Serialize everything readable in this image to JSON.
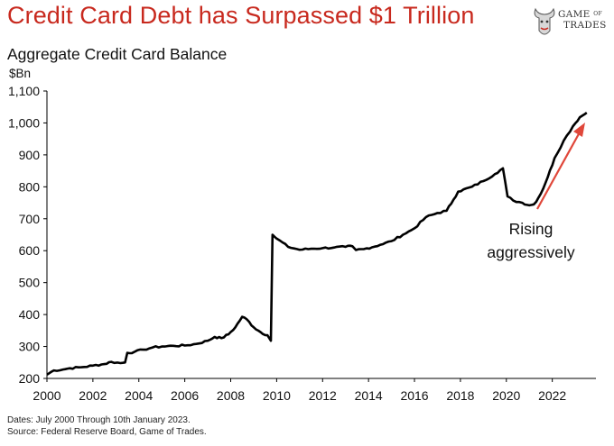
{
  "header": {
    "title": "Credit Card Debt has Surpassed $1 Trillion",
    "subtitle": "Aggregate Credit Card Balance"
  },
  "logo": {
    "line1": "GAME",
    "line1_small": "OF",
    "line2": "TRADES",
    "icon": "bull-icon"
  },
  "footer": {
    "dates": "Dates: July 2000 Through 10th January 2023.",
    "source": "Source: Federal Reserve Board, Game of Trades."
  },
  "chart_data": {
    "type": "line",
    "title": "Credit Card Debt has Surpassed $1 Trillion",
    "subtitle": "Aggregate Credit Card Balance",
    "ylabel": "$Bn",
    "xlabel": "",
    "xlim": [
      2000,
      2023.9
    ],
    "ylim": [
      200,
      1100
    ],
    "xticks": [
      "2000",
      "2002",
      "2004",
      "2006",
      "2008",
      "2010",
      "2012",
      "2014",
      "2016",
      "2018",
      "2020",
      "2022"
    ],
    "yticks": [
      "200",
      "300",
      "400",
      "500",
      "600",
      "700",
      "800",
      "900",
      "1,000",
      "1,100"
    ],
    "grid": false,
    "series": [
      {
        "color": "#000000",
        "points": [
          [
            2000.0,
            212
          ],
          [
            2000.3,
            225
          ],
          [
            2000.7,
            228
          ],
          [
            2001.0,
            232
          ],
          [
            2001.5,
            235
          ],
          [
            2002.0,
            240
          ],
          [
            2002.5,
            245
          ],
          [
            2002.8,
            252
          ],
          [
            2003.2,
            248
          ],
          [
            2003.4,
            250
          ],
          [
            2003.5,
            280
          ],
          [
            2003.8,
            283
          ],
          [
            2004.2,
            290
          ],
          [
            2004.6,
            297
          ],
          [
            2005.0,
            300
          ],
          [
            2005.5,
            302
          ],
          [
            2006.0,
            303
          ],
          [
            2006.5,
            308
          ],
          [
            2007.0,
            318
          ],
          [
            2007.3,
            330
          ],
          [
            2007.6,
            326
          ],
          [
            2007.9,
            338
          ],
          [
            2008.2,
            360
          ],
          [
            2008.5,
            393
          ],
          [
            2008.7,
            385
          ],
          [
            2009.0,
            360
          ],
          [
            2009.3,
            345
          ],
          [
            2009.6,
            335
          ],
          [
            2009.75,
            318
          ],
          [
            2009.82,
            650
          ],
          [
            2010.0,
            638
          ],
          [
            2010.5,
            612
          ],
          [
            2011.0,
            603
          ],
          [
            2011.5,
            606
          ],
          [
            2012.0,
            608
          ],
          [
            2012.5,
            610
          ],
          [
            2013.0,
            612
          ],
          [
            2013.3,
            614
          ],
          [
            2013.45,
            602
          ],
          [
            2013.8,
            605
          ],
          [
            2014.5,
            618
          ],
          [
            2015.0,
            630
          ],
          [
            2015.5,
            650
          ],
          [
            2016.0,
            670
          ],
          [
            2016.5,
            705
          ],
          [
            2017.0,
            718
          ],
          [
            2017.4,
            725
          ],
          [
            2017.7,
            760
          ],
          [
            2017.9,
            785
          ],
          [
            2018.5,
            800
          ],
          [
            2019.0,
            818
          ],
          [
            2019.5,
            840
          ],
          [
            2019.85,
            858
          ],
          [
            2020.05,
            770
          ],
          [
            2020.3,
            757
          ],
          [
            2020.7,
            750
          ],
          [
            2021.0,
            742
          ],
          [
            2021.2,
            745
          ],
          [
            2021.5,
            778
          ],
          [
            2021.8,
            830
          ],
          [
            2022.1,
            890
          ],
          [
            2022.5,
            945
          ],
          [
            2022.9,
            990
          ],
          [
            2023.2,
            1018
          ],
          [
            2023.5,
            1032
          ]
        ]
      }
    ],
    "annotations": [
      {
        "text_line1": "Rising",
        "text_line2": "aggressively",
        "color": "#e0473a",
        "icon": "arrow-up-right"
      }
    ]
  }
}
